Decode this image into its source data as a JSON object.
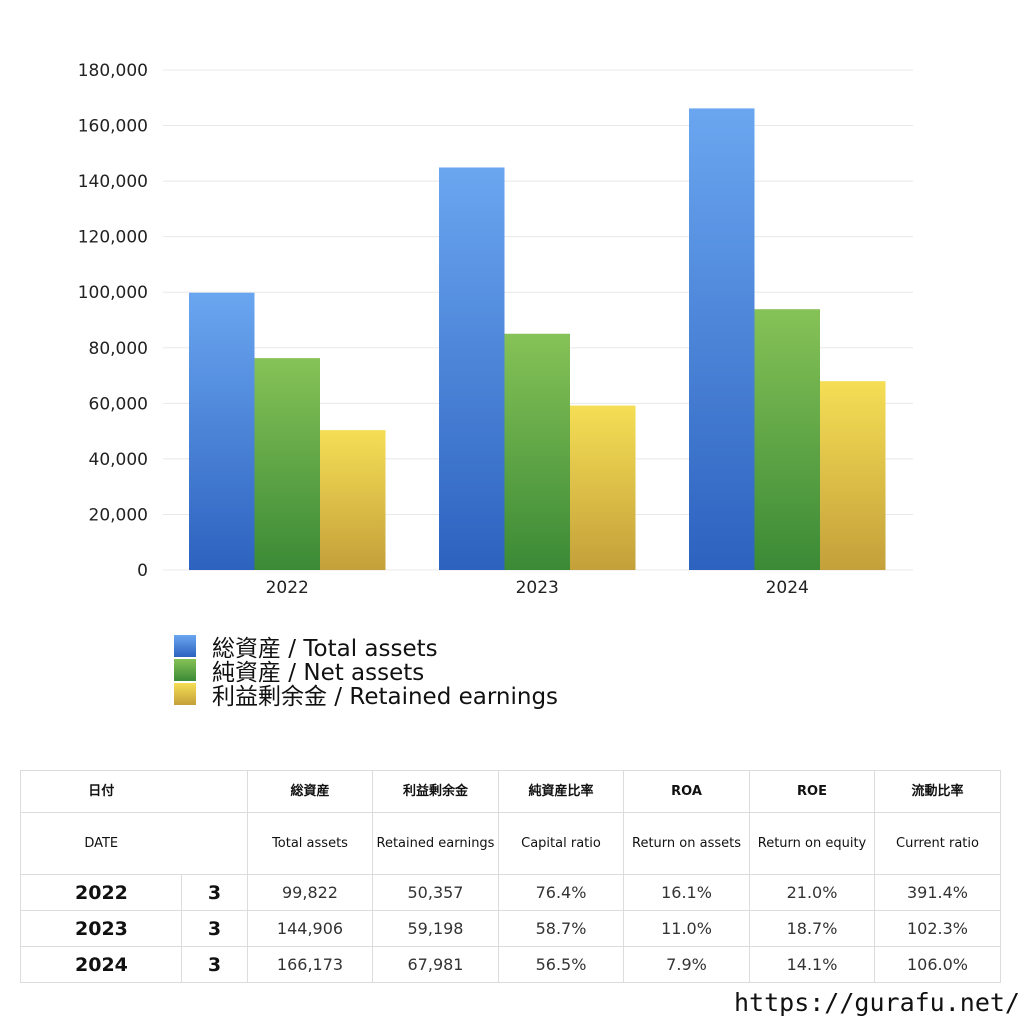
{
  "chart_data": {
    "type": "bar",
    "categories": [
      "2022",
      "2023",
      "2024"
    ],
    "series": [
      {
        "name": "総資産 / Total assets",
        "values": [
          99822,
          144906,
          166173
        ],
        "color_top": "#6aa6f0",
        "color_bottom": "#2d62bf"
      },
      {
        "name": "純資産 / Net assets",
        "values": [
          76265,
          85060,
          93888
        ],
        "color_top": "#86c257",
        "color_bottom": "#3b8a36"
      },
      {
        "name": "利益剰余金 / Retained earnings",
        "values": [
          50357,
          59198,
          67981
        ],
        "color_top": "#f5de55",
        "color_bottom": "#c4a03a"
      }
    ],
    "ylim": [
      0,
      180000
    ],
    "yticks": [
      "0",
      "20,000",
      "40,000",
      "60,000",
      "80,000",
      "100,000",
      "120,000",
      "140,000",
      "160,000",
      "180,000"
    ],
    "grid": true,
    "legend_position": "bottom-left"
  },
  "table": {
    "header_jp": [
      "日付",
      "",
      "総資産",
      "利益剰余金",
      "純資産比率",
      "ROA",
      "ROE",
      "流動比率"
    ],
    "header_en": [
      "DATE",
      "",
      "Total assets",
      "Retained earnings",
      "Capital ratio",
      "Return on assets",
      "Return on equity",
      "Current ratio"
    ],
    "rows": [
      {
        "year": "2022",
        "month": "3",
        "total_assets": "99,822",
        "retained": "50,357",
        "capital_ratio": "76.4%",
        "roa": "16.1%",
        "roe": "21.0%",
        "current_ratio": "391.4%"
      },
      {
        "year": "2023",
        "month": "3",
        "total_assets": "144,906",
        "retained": "59,198",
        "capital_ratio": "58.7%",
        "roa": "11.0%",
        "roe": "18.7%",
        "current_ratio": "102.3%"
      },
      {
        "year": "2024",
        "month": "3",
        "total_assets": "166,173",
        "retained": "67,981",
        "capital_ratio": "56.5%",
        "roa": "7.9%",
        "roe": "14.1%",
        "current_ratio": "106.0%"
      }
    ]
  },
  "footer": {
    "url": "https://gurafu.net/"
  }
}
